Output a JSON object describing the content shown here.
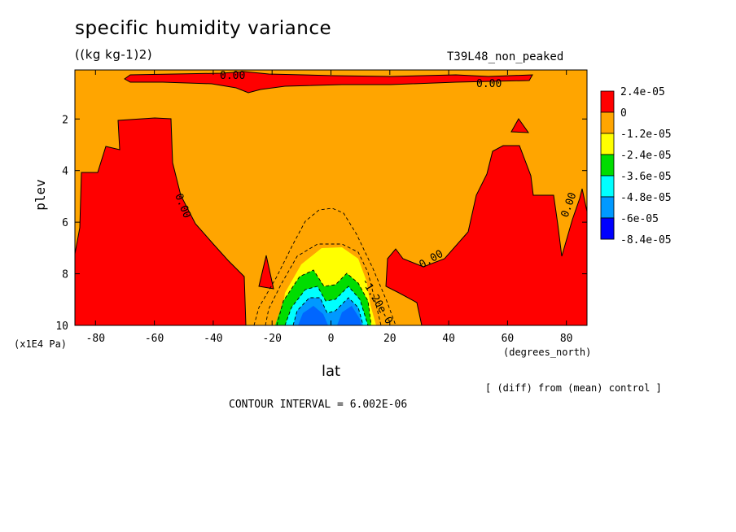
{
  "chart_data": {
    "type": "heatmap",
    "title": "specific humidity variance",
    "units": "((kg kg-1)2)",
    "run_label": "T39L48_non_peaked",
    "xlabel": "lat",
    "x_unit_label": "(degrees_north)",
    "ylabel": "plev",
    "y_unit_label": "(x1E4 Pa)",
    "xlim": [
      -87,
      87
    ],
    "ylim": [
      10,
      0.1
    ],
    "x_ticks": [
      "-80",
      "-60",
      "-40",
      "-20",
      "0",
      "20",
      "40",
      "60",
      "80"
    ],
    "y_ticks": [
      "2",
      "4",
      "6",
      "8",
      "10"
    ],
    "contour_labels": [
      "0.00",
      "0.00",
      "0.00",
      "0.00",
      "0.00",
      "-1.20e-0"
    ],
    "legend": {
      "placement": "right",
      "levels": [
        {
          "label": "2.4e-05",
          "color": "#ff0000"
        },
        {
          "label": "0",
          "color": "#ffa500"
        },
        {
          "label": "-1.2e-05",
          "color": "#ffff00"
        },
        {
          "label": "-2.4e-05",
          "color": "#00dd00"
        },
        {
          "label": "-3.6e-05",
          "color": "#00ffff"
        },
        {
          "label": "-4.8e-05",
          "color": "#0099ff"
        },
        {
          "label": "-6e-05",
          "color": "#0066ff"
        },
        {
          "label": "-8.4e-05",
          "color": "#0000ff"
        }
      ]
    },
    "note": "[ (diff) from (mean) control ]",
    "contour_interval": "CONTOUR INTERVAL = 6.002E-06"
  }
}
